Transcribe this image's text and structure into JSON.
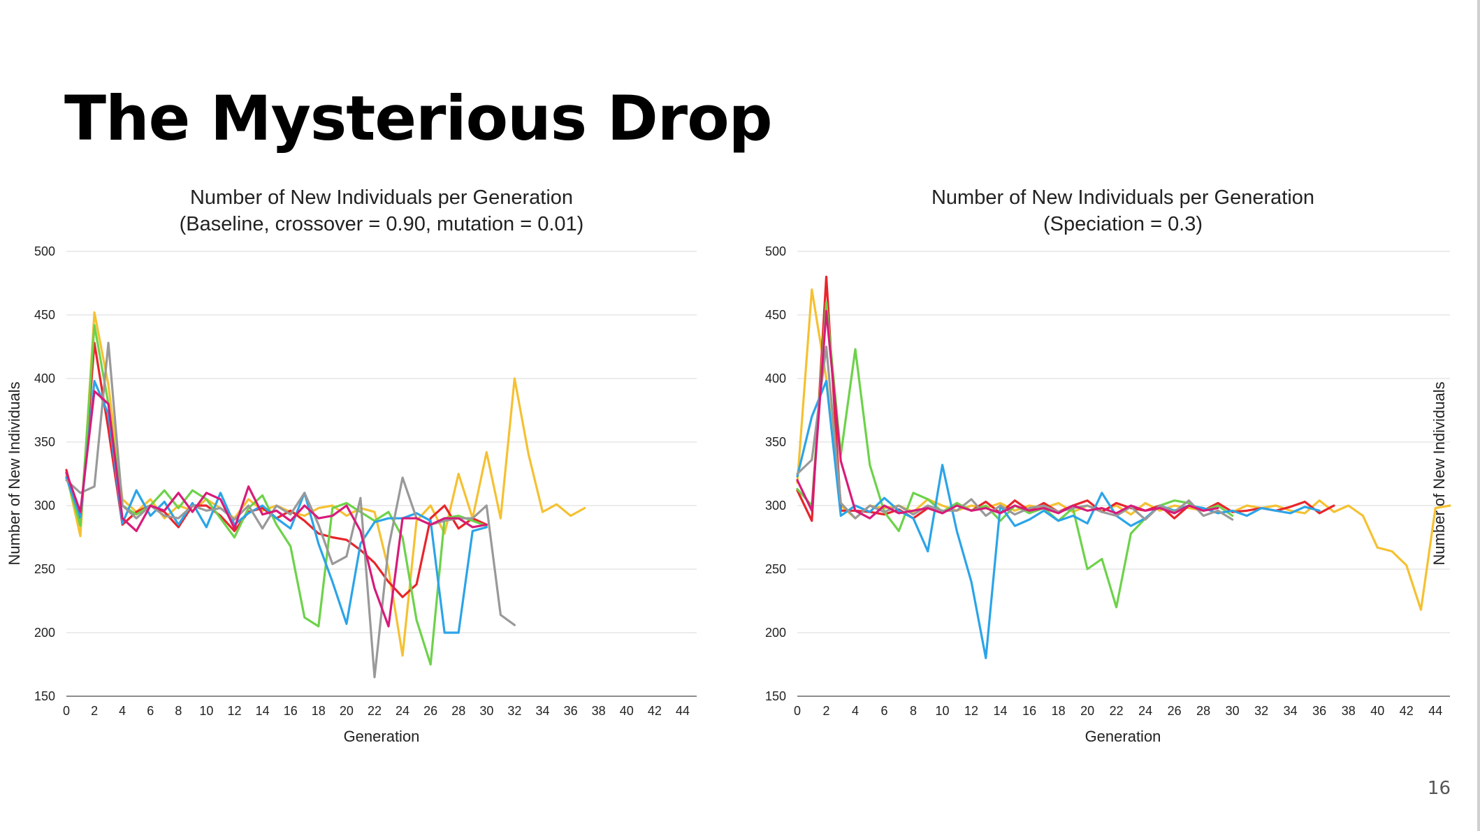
{
  "slide": {
    "title": "The Mysterious Drop",
    "page_number": "16"
  },
  "chart_data": [
    {
      "type": "line",
      "title": "Number of New Individuals per Generation",
      "subtitle": "(Baseline, crossover = 0.90, mutation = 0.01)",
      "xlabel": "Generation",
      "ylabel": "Number of New Individuals",
      "xlim": [
        0,
        45
      ],
      "ylim": [
        150,
        500
      ],
      "x_ticks": [
        0,
        2,
        4,
        6,
        8,
        10,
        12,
        14,
        16,
        18,
        20,
        22,
        24,
        26,
        28,
        30,
        32,
        34,
        36,
        38,
        40,
        42,
        44
      ],
      "y_ticks": [
        150,
        200,
        250,
        300,
        350,
        400,
        450,
        500
      ],
      "grid": true,
      "legend": "none",
      "series": [
        {
          "color": "#f5c132",
          "x": [
            0,
            1,
            2,
            3,
            4,
            5,
            6,
            7,
            8,
            9,
            10,
            11,
            12,
            13,
            14,
            15,
            16,
            17,
            18,
            19,
            20,
            21,
            22,
            23,
            24,
            25,
            26,
            27,
            28,
            29,
            30,
            31,
            32,
            33,
            34,
            35,
            36,
            37
          ],
          "values": [
            325,
            276,
            452,
            395,
            305,
            295,
            305,
            290,
            300,
            296,
            305,
            298,
            290,
            305,
            296,
            300,
            295,
            292,
            298,
            300,
            292,
            298,
            295,
            250,
            182,
            288,
            300,
            278,
            325,
            290,
            342,
            290,
            400,
            340,
            295,
            301,
            292,
            298
          ]
        },
        {
          "color": "#e8252b",
          "x": [
            0,
            1,
            2,
            3,
            4,
            5,
            6,
            7,
            8,
            9,
            10,
            11,
            12,
            13,
            14,
            15,
            16,
            17,
            18,
            19,
            20,
            21,
            22,
            23,
            24,
            25,
            26,
            27,
            28,
            29,
            30
          ],
          "values": [
            328,
            285,
            428,
            360,
            285,
            295,
            300,
            295,
            283,
            300,
            300,
            292,
            280,
            295,
            298,
            290,
            296,
            288,
            278,
            275,
            273,
            265,
            255,
            240,
            228,
            238,
            290,
            300,
            282,
            290,
            285
          ]
        },
        {
          "color": "#6dd24a",
          "x": [
            0,
            1,
            2,
            3,
            4,
            5,
            6,
            7,
            8,
            9,
            10,
            11,
            12,
            13,
            14,
            15,
            16,
            17,
            18,
            19,
            20,
            21,
            22,
            23,
            24,
            25,
            26,
            27,
            28,
            29,
            30
          ],
          "values": [
            323,
            284,
            442,
            380,
            300,
            293,
            300,
            312,
            298,
            312,
            305,
            290,
            275,
            298,
            308,
            285,
            268,
            212,
            205,
            298,
            302,
            295,
            288,
            295,
            275,
            210,
            175,
            290,
            292,
            288,
            284
          ]
        },
        {
          "color": "#2ba4e8",
          "x": [
            0,
            1,
            2,
            3,
            4,
            5,
            6,
            7,
            8,
            9,
            10,
            11,
            12,
            13,
            14,
            15,
            16,
            17,
            18,
            19,
            20,
            21,
            22,
            23,
            24,
            25,
            26,
            27,
            28,
            29,
            30
          ],
          "values": [
            322,
            291,
            398,
            372,
            286,
            312,
            292,
            303,
            285,
            302,
            283,
            310,
            285,
            294,
            300,
            290,
            282,
            310,
            270,
            240,
            207,
            270,
            287,
            290,
            290,
            294,
            288,
            200,
            200,
            280,
            283
          ]
        },
        {
          "color": "#999999",
          "x": [
            0,
            1,
            2,
            3,
            4,
            5,
            6,
            7,
            8,
            9,
            10,
            11,
            12,
            13,
            14,
            15,
            16,
            17,
            18,
            19,
            20,
            21,
            22,
            23,
            24,
            25,
            26,
            27,
            28,
            29,
            30,
            31,
            32
          ],
          "values": [
            320,
            310,
            315,
            428,
            300,
            290,
            300,
            292,
            290,
            300,
            296,
            298,
            289,
            300,
            282,
            300,
            293,
            310,
            285,
            254,
            260,
            306,
            165,
            267,
            322,
            290,
            285,
            288,
            290,
            290,
            300,
            214,
            206
          ]
        },
        {
          "color": "#d81b79",
          "x": [
            0,
            1,
            2,
            3,
            4,
            5,
            6,
            7,
            8,
            9,
            10,
            11,
            12,
            13,
            14,
            15,
            16,
            17,
            18,
            19,
            20,
            21,
            22,
            23,
            24,
            25,
            26,
            27,
            28,
            29,
            30
          ],
          "values": [
            326,
            295,
            390,
            380,
            290,
            280,
            300,
            296,
            310,
            295,
            310,
            305,
            282,
            315,
            293,
            296,
            288,
            300,
            290,
            292,
            300,
            280,
            235,
            205,
            290,
            290,
            285,
            290,
            290,
            283,
            285
          ]
        }
      ]
    },
    {
      "type": "line",
      "title": "Number of New Individuals per Generation",
      "subtitle": "(Speciation = 0.3)",
      "xlabel": "Generation",
      "ylabel": "Number of New Individuals",
      "xlim": [
        0,
        45
      ],
      "ylim": [
        150,
        500
      ],
      "x_ticks": [
        0,
        2,
        4,
        6,
        8,
        10,
        12,
        14,
        16,
        18,
        20,
        22,
        24,
        26,
        28,
        30,
        32,
        34,
        36,
        38,
        40,
        42,
        44
      ],
      "y_ticks": [
        150,
        200,
        250,
        300,
        350,
        400,
        450,
        500
      ],
      "grid": true,
      "legend": "none",
      "series": [
        {
          "color": "#f5c132",
          "x": [
            0,
            1,
            2,
            3,
            4,
            5,
            6,
            7,
            8,
            9,
            10,
            11,
            12,
            13,
            14,
            15,
            16,
            17,
            18,
            19,
            20,
            21,
            22,
            23,
            24,
            25,
            26,
            27,
            28,
            29,
            30,
            31,
            32,
            33,
            34,
            35,
            36,
            37,
            38,
            39,
            40,
            41,
            42,
            43,
            44,
            45
          ],
          "values": [
            318,
            470,
            400,
            300,
            290,
            300,
            298,
            300,
            295,
            305,
            300,
            296,
            300,
            298,
            302,
            296,
            300,
            298,
            302,
            295,
            300,
            296,
            300,
            293,
            302,
            296,
            300,
            298,
            296,
            302,
            295,
            300,
            298,
            300,
            296,
            294,
            304,
            295,
            300,
            292,
            267,
            264,
            253,
            218,
            298,
            300
          ]
        },
        {
          "color": "#e8252b",
          "x": [
            0,
            1,
            2,
            3,
            4,
            5,
            6,
            7,
            8,
            9,
            10,
            11,
            12,
            13,
            14,
            15,
            16,
            17,
            18,
            19,
            20,
            21,
            22,
            23,
            24,
            25,
            26,
            27,
            28,
            29,
            30,
            31,
            32,
            33,
            34,
            35,
            36,
            37
          ],
          "values": [
            312,
            288,
            480,
            296,
            296,
            295,
            293,
            297,
            290,
            298,
            294,
            302,
            296,
            303,
            294,
            304,
            296,
            302,
            295,
            300,
            304,
            295,
            302,
            298,
            296,
            300,
            290,
            300,
            296,
            302,
            295,
            296,
            298,
            296,
            299,
            303,
            294,
            300
          ]
        },
        {
          "color": "#6dd24a",
          "x": [
            0,
            1,
            2,
            3,
            4,
            5,
            6,
            7,
            8,
            9,
            10,
            11,
            12,
            13,
            14,
            15,
            16,
            17,
            18,
            19,
            20,
            21,
            22,
            23,
            24,
            25,
            26,
            27,
            28,
            29,
            30
          ],
          "values": [
            313,
            300,
            460,
            340,
            423,
            332,
            295,
            280,
            310,
            305,
            295,
            302,
            296,
            300,
            288,
            300,
            294,
            298,
            288,
            298,
            250,
            258,
            220,
            278,
            290,
            300,
            304,
            302,
            296,
            300,
            292
          ]
        },
        {
          "color": "#2ba4e8",
          "x": [
            0,
            1,
            2,
            3,
            4,
            5,
            6,
            7,
            8,
            9,
            10,
            11,
            12,
            13,
            14,
            15,
            16,
            17,
            18,
            19,
            20,
            21,
            22,
            23,
            24,
            25,
            26,
            27,
            28,
            29,
            30,
            31,
            32,
            33,
            34,
            35,
            36
          ],
          "values": [
            323,
            370,
            398,
            292,
            300,
            295,
            306,
            296,
            290,
            264,
            332,
            280,
            240,
            180,
            300,
            284,
            289,
            296,
            288,
            292,
            286,
            310,
            292,
            284,
            290,
            300,
            296,
            300,
            298,
            294,
            296,
            292,
            298,
            296,
            294,
            299,
            296
          ]
        },
        {
          "color": "#999999",
          "x": [
            0,
            1,
            2,
            3,
            4,
            5,
            6,
            7,
            8,
            9,
            10,
            11,
            12,
            13,
            14,
            15,
            16,
            17,
            18,
            19,
            20,
            21,
            22,
            23,
            24,
            25,
            26,
            27,
            28,
            29,
            30
          ],
          "values": [
            325,
            336,
            425,
            302,
            290,
            300,
            295,
            300,
            293,
            300,
            296,
            296,
            305,
            292,
            300,
            293,
            298,
            300,
            295,
            298,
            300,
            295,
            292,
            299,
            289,
            300,
            295,
            304,
            292,
            296,
            289
          ]
        },
        {
          "color": "#d81b79",
          "x": [
            0,
            1,
            2,
            3,
            4,
            5,
            6,
            7,
            8,
            9,
            10,
            11,
            12,
            13,
            14,
            15,
            16,
            17,
            18,
            19,
            20,
            21,
            22,
            23,
            24,
            25,
            26,
            27,
            28,
            29
          ],
          "values": [
            320,
            296,
            453,
            335,
            296,
            290,
            300,
            294,
            296,
            298,
            294,
            300,
            296,
            298,
            294,
            300,
            296,
            298,
            294,
            300,
            296,
            298,
            294,
            300,
            296,
            298,
            294,
            300,
            296,
            298
          ]
        }
      ]
    }
  ]
}
